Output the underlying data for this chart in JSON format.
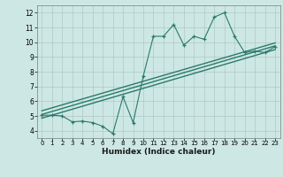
{
  "title": "",
  "xlabel": "Humidex (Indice chaleur)",
  "bg_color": "#cde8e4",
  "grid_color": "#b0c8c4",
  "line_color": "#2a7a6a",
  "xlim": [
    -0.5,
    23.5
  ],
  "ylim": [
    3.5,
    12.5
  ],
  "xticks": [
    0,
    1,
    2,
    3,
    4,
    5,
    6,
    7,
    8,
    9,
    10,
    11,
    12,
    13,
    14,
    15,
    16,
    17,
    18,
    19,
    20,
    21,
    22,
    23
  ],
  "yticks": [
    4,
    5,
    6,
    7,
    8,
    9,
    10,
    11,
    12
  ],
  "scatter_x": [
    0,
    1,
    2,
    3,
    4,
    5,
    6,
    7,
    8,
    9,
    10,
    11,
    12,
    13,
    14,
    15,
    16,
    17,
    18,
    19,
    20,
    21,
    22,
    23
  ],
  "scatter_y": [
    5.05,
    5.05,
    5.0,
    4.6,
    4.65,
    4.55,
    4.3,
    3.8,
    6.3,
    4.55,
    7.7,
    10.4,
    10.4,
    11.2,
    9.8,
    10.4,
    10.2,
    11.7,
    12.0,
    10.4,
    9.3,
    9.4,
    9.3,
    9.7
  ],
  "line1_x": [
    0,
    23
  ],
  "line1_y": [
    5.1,
    9.75
  ],
  "line2_x": [
    0,
    23
  ],
  "line2_y": [
    4.85,
    9.5
  ],
  "line3_x": [
    0,
    23
  ],
  "line3_y": [
    5.35,
    9.95
  ]
}
